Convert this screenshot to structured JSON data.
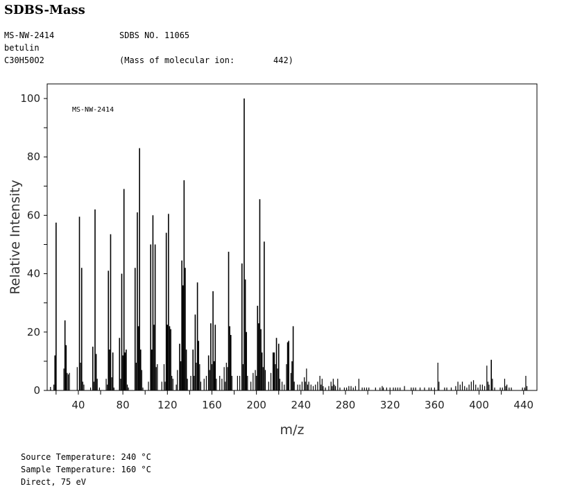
{
  "header": {
    "title": "SDBS-Mass",
    "ms_id": "MS-NW-2414",
    "sdbs_no": "SDBS NO. 11065",
    "compound": "betulin",
    "formula": "C30H50O2",
    "molecular_ion_label": "(Mass of molecular ion:",
    "molecular_ion_value": "442)"
  },
  "footer": {
    "source_temp": "Source Temperature: 240 °C",
    "sample_temp": "Sample Temperature: 160 °C",
    "method": "Direct, 75 eV"
  },
  "chart_data": {
    "type": "bar",
    "title": "",
    "inset_label": "MS-NW-2414",
    "xlabel": "m/z",
    "ylabel": "Relative Intensity",
    "xlim": [
      12,
      452
    ],
    "ylim": [
      0,
      105
    ],
    "xticks": [
      40,
      80,
      120,
      160,
      200,
      240,
      280,
      320,
      360,
      400,
      440
    ],
    "yticks": [
      0,
      20,
      40,
      60,
      80,
      100
    ],
    "grid": false,
    "series": [
      {
        "peaks": [
          [
            15,
            1.2
          ],
          [
            18,
            2
          ],
          [
            19,
            12
          ],
          [
            20,
            57.5
          ],
          [
            27,
            7.5
          ],
          [
            28,
            24
          ],
          [
            29,
            15.5
          ],
          [
            30,
            6
          ],
          [
            31,
            5.5
          ],
          [
            32,
            6
          ],
          [
            39,
            8
          ],
          [
            41,
            59.5
          ],
          [
            42,
            9.5
          ],
          [
            43,
            42
          ],
          [
            44,
            3
          ],
          [
            45,
            2
          ],
          [
            51,
            1
          ],
          [
            53,
            15
          ],
          [
            54,
            3
          ],
          [
            55,
            62
          ],
          [
            56,
            12.5
          ],
          [
            57,
            4
          ],
          [
            59,
            1
          ],
          [
            65,
            4
          ],
          [
            66,
            2
          ],
          [
            67,
            41
          ],
          [
            68,
            14
          ],
          [
            69,
            53.5
          ],
          [
            70,
            4.5
          ],
          [
            71,
            13
          ],
          [
            72,
            1
          ],
          [
            77,
            18
          ],
          [
            78,
            4
          ],
          [
            79,
            40
          ],
          [
            80,
            12
          ],
          [
            81,
            69
          ],
          [
            82,
            13
          ],
          [
            83,
            14
          ],
          [
            84,
            2
          ],
          [
            85,
            1
          ],
          [
            91,
            42
          ],
          [
            92,
            9.5
          ],
          [
            93,
            61
          ],
          [
            94,
            22
          ],
          [
            95,
            83
          ],
          [
            96,
            14
          ],
          [
            97,
            7
          ],
          [
            98,
            1
          ],
          [
            103,
            3
          ],
          [
            105,
            50
          ],
          [
            106,
            14
          ],
          [
            107,
            60
          ],
          [
            108,
            22.5
          ],
          [
            109,
            50
          ],
          [
            110,
            8
          ],
          [
            111,
            9
          ],
          [
            115,
            3
          ],
          [
            117,
            9
          ],
          [
            118,
            3
          ],
          [
            119,
            54
          ],
          [
            120,
            22.5
          ],
          [
            121,
            60.5
          ],
          [
            122,
            22
          ],
          [
            123,
            21
          ],
          [
            124,
            5
          ],
          [
            125,
            4
          ],
          [
            128,
            2
          ],
          [
            129,
            7
          ],
          [
            131,
            16
          ],
          [
            132,
            10
          ],
          [
            133,
            44.5
          ],
          [
            134,
            36
          ],
          [
            135,
            72
          ],
          [
            136,
            42
          ],
          [
            137,
            14
          ],
          [
            138,
            4
          ],
          [
            141,
            5
          ],
          [
            143,
            14
          ],
          [
            144,
            5
          ],
          [
            145,
            26
          ],
          [
            146,
            9.5
          ],
          [
            147,
            37
          ],
          [
            148,
            17
          ],
          [
            149,
            9
          ],
          [
            150,
            3
          ],
          [
            153,
            4
          ],
          [
            155,
            5
          ],
          [
            157,
            12
          ],
          [
            158,
            7
          ],
          [
            159,
            23
          ],
          [
            160,
            9
          ],
          [
            161,
            34
          ],
          [
            162,
            10
          ],
          [
            163,
            22.5
          ],
          [
            164,
            4
          ],
          [
            167,
            5
          ],
          [
            169,
            4
          ],
          [
            171,
            8
          ],
          [
            172,
            3
          ],
          [
            173,
            9.5
          ],
          [
            174,
            8
          ],
          [
            175,
            47.5
          ],
          [
            176,
            22
          ],
          [
            177,
            19
          ],
          [
            178,
            5
          ],
          [
            183,
            5
          ],
          [
            185,
            5
          ],
          [
            187,
            43.5
          ],
          [
            188,
            9
          ],
          [
            189,
            100
          ],
          [
            190,
            38
          ],
          [
            191,
            20
          ],
          [
            192,
            5
          ],
          [
            195,
            3
          ],
          [
            197,
            6
          ],
          [
            199,
            7
          ],
          [
            200,
            5
          ],
          [
            201,
            29
          ],
          [
            202,
            23
          ],
          [
            203,
            65.5
          ],
          [
            204,
            21
          ],
          [
            205,
            13
          ],
          [
            206,
            8
          ],
          [
            207,
            51
          ],
          [
            208,
            7
          ],
          [
            211,
            3
          ],
          [
            213,
            6
          ],
          [
            215,
            13
          ],
          [
            216,
            13
          ],
          [
            217,
            9
          ],
          [
            218,
            18
          ],
          [
            219,
            7.5
          ],
          [
            220,
            16
          ],
          [
            221,
            4
          ],
          [
            223,
            3
          ],
          [
            225,
            2
          ],
          [
            227,
            9
          ],
          [
            228,
            16.5
          ],
          [
            229,
            17
          ],
          [
            231,
            6
          ],
          [
            232,
            10
          ],
          [
            233,
            22
          ],
          [
            234,
            3
          ],
          [
            237,
            2
          ],
          [
            239,
            2
          ],
          [
            241,
            3
          ],
          [
            243,
            4.5
          ],
          [
            244,
            3
          ],
          [
            245,
            7.5
          ],
          [
            246,
            2
          ],
          [
            247,
            3
          ],
          [
            249,
            2
          ],
          [
            251,
            1.5
          ],
          [
            253,
            2
          ],
          [
            255,
            3
          ],
          [
            257,
            5
          ],
          [
            258,
            2
          ],
          [
            259,
            4
          ],
          [
            260,
            1.5
          ],
          [
            262,
            1
          ],
          [
            265,
            1.5
          ],
          [
            267,
            3
          ],
          [
            268,
            1.5
          ],
          [
            269,
            4
          ],
          [
            270,
            2
          ],
          [
            271,
            1.5
          ],
          [
            273,
            4
          ],
          [
            275,
            1
          ],
          [
            279,
            1
          ],
          [
            281,
            1
          ],
          [
            283,
            1.5
          ],
          [
            285,
            1.5
          ],
          [
            287,
            1
          ],
          [
            289,
            1.5
          ],
          [
            292,
            4
          ],
          [
            295,
            1
          ],
          [
            297,
            1
          ],
          [
            299,
            1
          ],
          [
            301,
            1
          ],
          [
            307,
            1
          ],
          [
            311,
            1
          ],
          [
            313,
            1.5
          ],
          [
            314,
            1
          ],
          [
            317,
            1
          ],
          [
            320,
            1
          ],
          [
            323,
            1
          ],
          [
            325,
            1
          ],
          [
            327,
            1
          ],
          [
            329,
            1
          ],
          [
            333,
            1.5
          ],
          [
            339,
            1
          ],
          [
            341,
            1
          ],
          [
            343,
            1
          ],
          [
            347,
            1
          ],
          [
            351,
            1
          ],
          [
            355,
            1
          ],
          [
            357,
            1
          ],
          [
            360,
            1
          ],
          [
            363,
            9.5
          ],
          [
            364,
            3
          ],
          [
            369,
            1
          ],
          [
            371,
            1
          ],
          [
            375,
            1
          ],
          [
            379,
            1.5
          ],
          [
            381,
            3
          ],
          [
            383,
            2
          ],
          [
            385,
            3
          ],
          [
            387,
            1.5
          ],
          [
            389,
            1
          ],
          [
            391,
            2
          ],
          [
            393,
            3
          ],
          [
            395,
            3.5
          ],
          [
            397,
            2
          ],
          [
            399,
            1
          ],
          [
            401,
            2
          ],
          [
            403,
            2
          ],
          [
            405,
            1.5
          ],
          [
            407,
            8.5
          ],
          [
            408,
            3
          ],
          [
            409,
            2
          ],
          [
            411,
            10.5
          ],
          [
            412,
            4
          ],
          [
            414,
            1
          ],
          [
            419,
            1
          ],
          [
            421,
            1
          ],
          [
            423,
            4
          ],
          [
            424,
            1.5
          ],
          [
            425,
            2
          ],
          [
            427,
            1
          ],
          [
            429,
            1
          ],
          [
            439,
            1
          ],
          [
            441,
            1
          ],
          [
            442,
            5
          ],
          [
            443,
            1.5
          ]
        ]
      }
    ]
  }
}
